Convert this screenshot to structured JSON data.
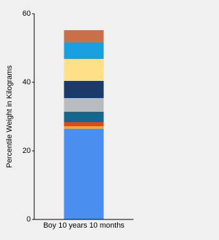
{
  "chart_data": {
    "type": "stacked-bar",
    "y_label": "Percentile Weight in Kilograms",
    "categories": [
      "Boy 10 years 10 months"
    ],
    "series": [
      {
        "color": "#4a8ef0",
        "values": [
          26.4
        ]
      },
      {
        "color": "#f0a830",
        "values": [
          0.8
        ]
      },
      {
        "color": "#e04818",
        "values": [
          1.2
        ]
      },
      {
        "color": "#12688e",
        "values": [
          3.0
        ]
      },
      {
        "color": "#b8bcc0",
        "values": [
          4.0
        ]
      },
      {
        "color": "#1a3a6a",
        "values": [
          5.0
        ]
      },
      {
        "color": "#fee088",
        "values": [
          6.4
        ]
      },
      {
        "color": "#18a0e0",
        "values": [
          4.8
        ]
      },
      {
        "color": "#c8704a",
        "values": [
          3.6
        ]
      }
    ],
    "ylim": [
      0,
      60
    ],
    "yticks": [
      0,
      20,
      40,
      60
    ]
  }
}
